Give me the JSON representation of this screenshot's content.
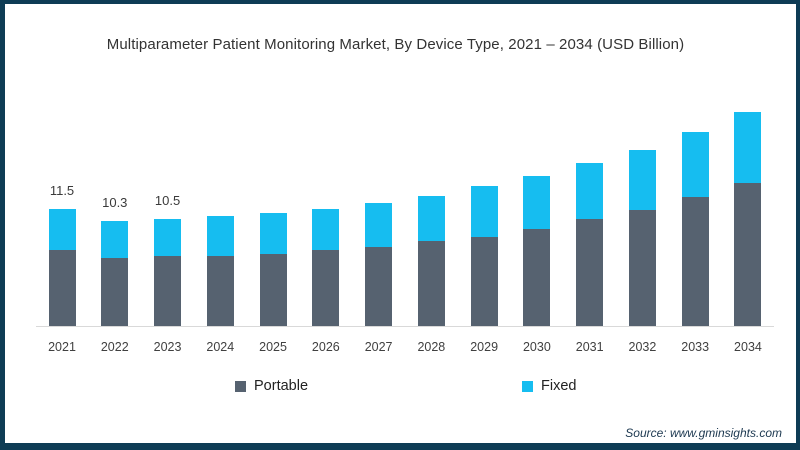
{
  "window": {
    "frame_border_color": "#0e3c55",
    "background_color": "#ffffff"
  },
  "title": "Multiparameter Patient Monitoring Market, By Device Type, 2021 – 2034 (USD Billion)",
  "source_note": "Source: www.gminsights.com",
  "legend": {
    "items": [
      {
        "label": "Portable",
        "color": "#566270"
      },
      {
        "label": "Fixed",
        "color": "#16bdf0"
      }
    ]
  },
  "chart_data": {
    "type": "bar",
    "stacked": true,
    "title": "Multiparameter Patient Monitoring Market, By Device Type, 2021 – 2034 (USD Billion)",
    "unit": "USD Billion",
    "categories": [
      "2021",
      "2022",
      "2023",
      "2024",
      "2025",
      "2026",
      "2027",
      "2028",
      "2029",
      "2030",
      "2031",
      "2032",
      "2033",
      "2034"
    ],
    "series": [
      {
        "name": "Portable",
        "color": "#566270",
        "values": [
          7.5,
          6.7,
          6.9,
          6.9,
          7.1,
          7.5,
          7.8,
          8.4,
          8.8,
          9.6,
          10.5,
          11.4,
          12.7,
          14.0
        ]
      },
      {
        "name": "Fixed",
        "color": "#16bdf0",
        "values": [
          4.0,
          3.6,
          3.6,
          3.9,
          4.0,
          4.0,
          4.3,
          4.4,
          4.9,
          5.1,
          5.5,
          5.9,
          6.3,
          7.0
        ]
      }
    ],
    "stack_totals": [
      11.5,
      10.3,
      10.5,
      10.8,
      11.1,
      11.5,
      12.1,
      12.8,
      13.7,
      14.7,
      16.0,
      17.3,
      19.0,
      21.0
    ],
    "visible_total_labels": [
      "11.5",
      "10.3",
      "10.5",
      "",
      "",
      "",
      "",
      "",
      "",
      "",
      "",
      "",
      "",
      ""
    ],
    "ylim": [
      0,
      22
    ],
    "grid": false,
    "legend_position": "bottom",
    "xlabel": "",
    "ylabel": ""
  }
}
